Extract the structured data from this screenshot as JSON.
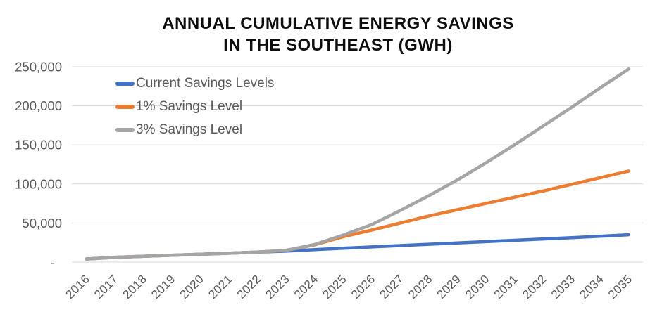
{
  "chart_data": {
    "type": "line",
    "title_line1": "ANNUAL CUMULATIVE ENERGY SAVINGS",
    "title_line2": "IN THE SOUTHEAST (GWH)",
    "x_labels": [
      "2016",
      "2017",
      "2018",
      "2019",
      "2020",
      "2021",
      "2022",
      "2023",
      "2024",
      "2025",
      "2026",
      "2027",
      "2028",
      "2029",
      "2030",
      "2031",
      "2032",
      "2033",
      "2034",
      "2035"
    ],
    "ylim": [
      0,
      250000
    ],
    "ytick_interval": 50000,
    "ytick_labels": [
      "-",
      "50,000",
      "100,000",
      "150,000",
      "200,000",
      "250,000"
    ],
    "grid": true,
    "legend_position": "top-left-inside",
    "series": [
      {
        "name": "Current Savings Levels",
        "color": "#4472C4",
        "values": [
          4000,
          6000,
          7500,
          8800,
          10000,
          11300,
          12800,
          14000,
          16000,
          17700,
          19400,
          21100,
          22800,
          24500,
          26200,
          27900,
          29600,
          31300,
          33100,
          35000
        ]
      },
      {
        "name": "1% Savings Level",
        "color": "#ED7D31",
        "values": [
          4000,
          6000,
          7500,
          8800,
          10000,
          11300,
          12800,
          15000,
          22000,
          32500,
          41000,
          50000,
          59000,
          67000,
          75000,
          83000,
          91000,
          99500,
          108000,
          116500
        ]
      },
      {
        "name": "3% Savings Level",
        "color": "#A5A5A5",
        "values": [
          4000,
          6000,
          7500,
          8800,
          10000,
          11300,
          12800,
          15000,
          22500,
          34500,
          48000,
          66000,
          85000,
          105000,
          127000,
          150000,
          174000,
          198000,
          223000,
          247000
        ]
      }
    ]
  },
  "style": {
    "background": "#FFFFFF",
    "title_color": "#0D0D0D",
    "axis_label_color": "#595959",
    "gridline_color": "#D9D9D9"
  }
}
